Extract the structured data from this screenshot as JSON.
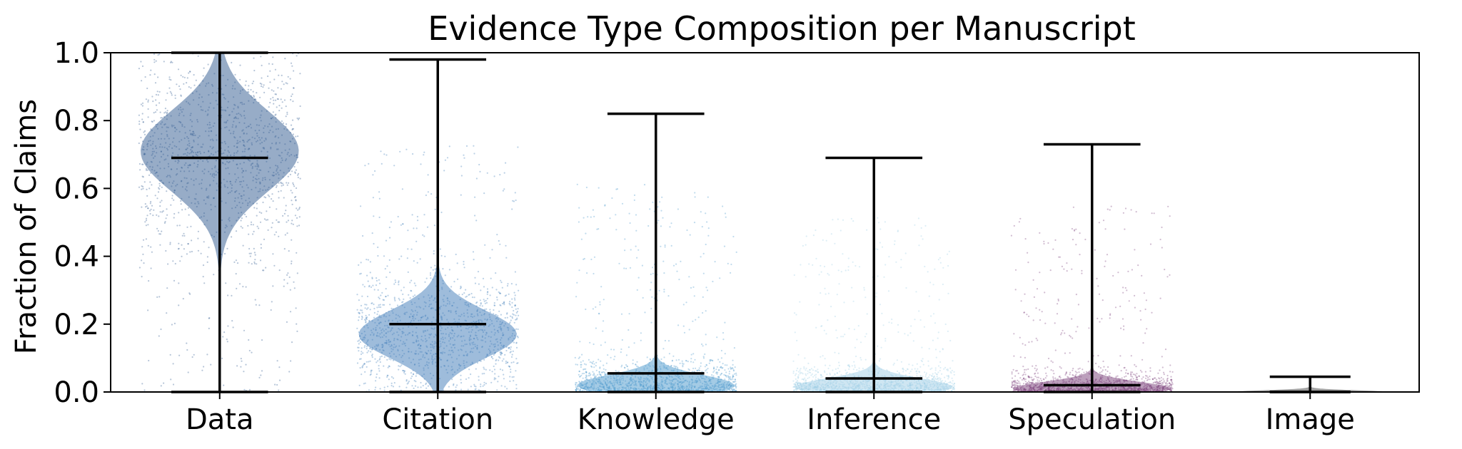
{
  "chart_data": {
    "type": "violin",
    "title": "Evidence Type Composition per Manuscript",
    "xlabel": "",
    "ylabel": "Fraction of Claims",
    "ylim": [
      0,
      1
    ],
    "yticks": [
      "0.0",
      "0.2",
      "0.4",
      "0.6",
      "0.8",
      "1.0"
    ],
    "ytick_values": [
      0,
      0.2,
      0.4,
      0.6,
      0.8,
      1.0
    ],
    "categories": [
      "Data",
      "Citation",
      "Knowledge",
      "Inference",
      "Speculation",
      "Image"
    ],
    "series": [
      {
        "category": "Data",
        "min": 0.0,
        "max": 1.0,
        "median": 0.69,
        "mode": 0.71,
        "spread": 0.12,
        "color": "#2f5a8f"
      },
      {
        "category": "Citation",
        "min": 0.0,
        "max": 0.98,
        "median": 0.2,
        "mode": 0.17,
        "spread": 0.07,
        "color": "#3d7ab8"
      },
      {
        "category": "Knowledge",
        "min": 0.0,
        "max": 0.82,
        "median": 0.055,
        "mode": 0.02,
        "spread": 0.03,
        "color": "#4a98cc"
      },
      {
        "category": "Inference",
        "min": 0.0,
        "max": 0.69,
        "median": 0.04,
        "mode": 0.015,
        "spread": 0.025,
        "color": "#9fcde5"
      },
      {
        "category": "Speculation",
        "min": 0.0,
        "max": 0.73,
        "median": 0.02,
        "mode": 0.01,
        "spread": 0.02,
        "color": "#7a3f7a"
      },
      {
        "category": "Image",
        "min": 0.0,
        "max": 0.045,
        "median": 0.0,
        "mode": 0.0,
        "spread": 0.005,
        "color": "#444444"
      }
    ],
    "grid": false,
    "legend": "none"
  }
}
